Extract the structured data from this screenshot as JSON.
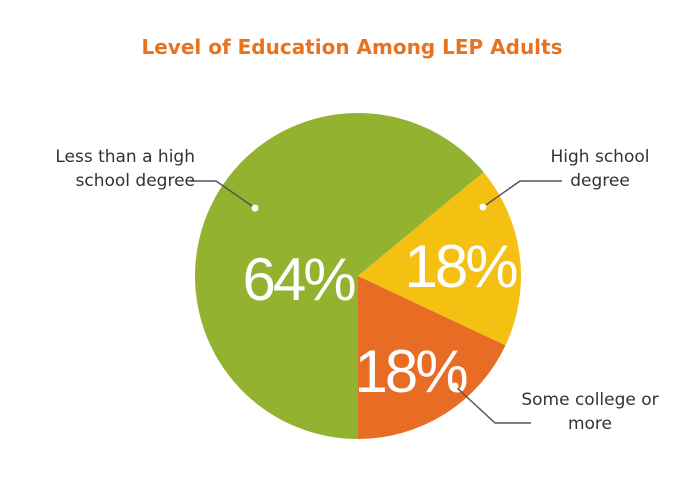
{
  "chart_data": {
    "type": "pie",
    "title": "Level of Education Among LEP Adults",
    "categories": [
      "Less than a high school degree",
      "High school degree",
      "Some college or more"
    ],
    "values": [
      64,
      18,
      18
    ],
    "value_labels": [
      "64%",
      "18%",
      "18%"
    ],
    "colors": [
      "#93b22f",
      "#f4c112",
      "#e86c23"
    ]
  }
}
